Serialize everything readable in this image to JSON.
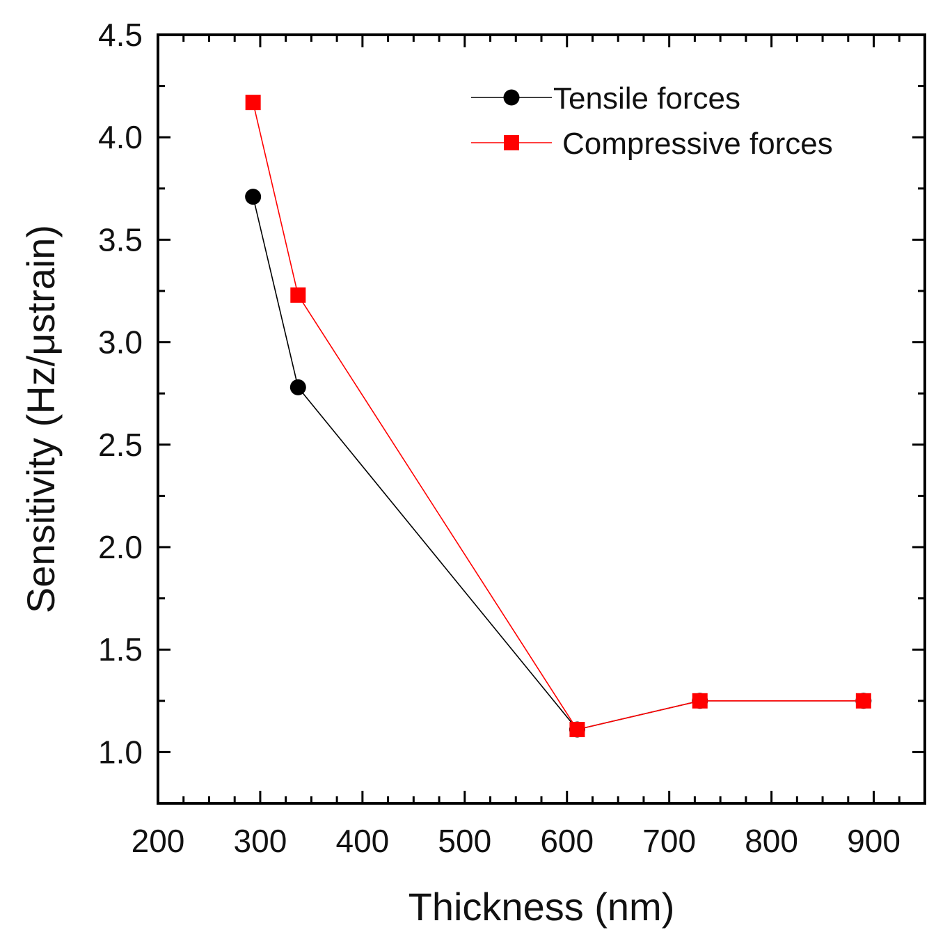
{
  "chart_data": {
    "type": "line",
    "xlabel": "Thickness (nm)",
    "ylabel": "Sensitivity (Hz/μstrain)",
    "xlim": [
      200,
      950
    ],
    "ylim": [
      0.75,
      4.5
    ],
    "x_ticks": [
      "200",
      "300",
      "400",
      "500",
      "600",
      "700",
      "800",
      "900"
    ],
    "y_ticks": [
      "1.0",
      "1.5",
      "2.0",
      "2.5",
      "3.0",
      "3.5",
      "4.0",
      "4.5"
    ],
    "legend_position": "top-right",
    "grid": false,
    "series": [
      {
        "name": "Tensile forces",
        "color": "#000000",
        "marker": "circle",
        "x": [
          293,
          337,
          610,
          730,
          890
        ],
        "y": [
          3.71,
          2.78,
          1.11,
          1.25,
          1.25
        ]
      },
      {
        "name": "Compressive forces",
        "color": "#ff0000",
        "marker": "square",
        "x": [
          293,
          337,
          610,
          730,
          890
        ],
        "y": [
          4.17,
          3.23,
          1.11,
          1.25,
          1.25
        ]
      }
    ]
  }
}
